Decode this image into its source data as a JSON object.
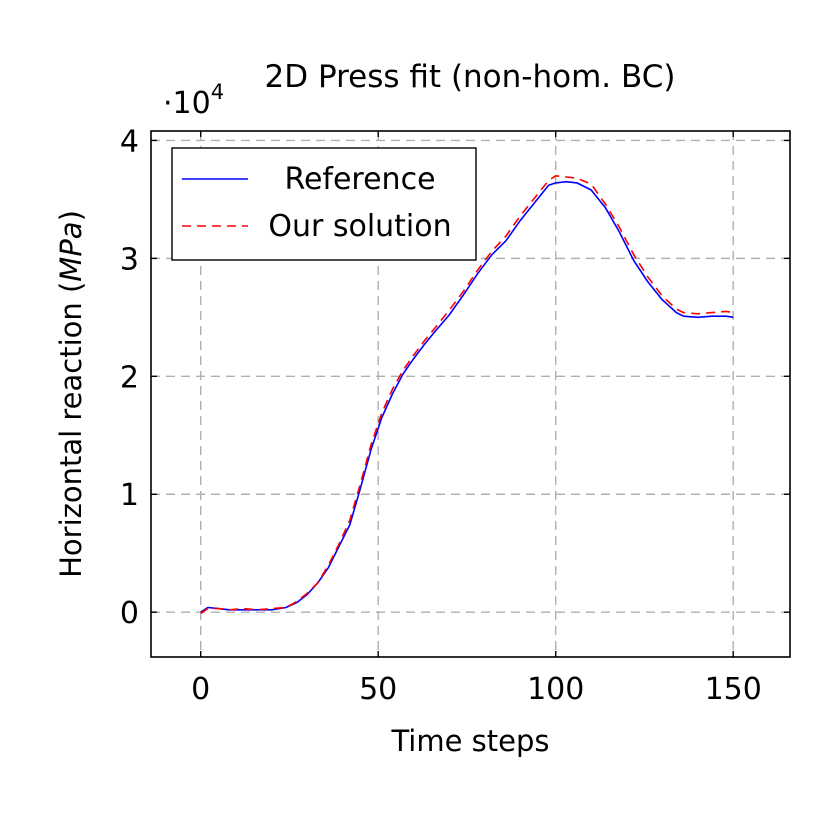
{
  "chart_data": {
    "type": "line",
    "title": "2D Press fit (non-hom. BC)",
    "xlabel": "Time steps",
    "ylabel_prefix": "Horizontal reaction (",
    "ylabel_unit": "MPa",
    "ylabel_suffix": ")",
    "y_multiplier_base": "·10",
    "y_multiplier_exp": "4",
    "xlim": [
      -14,
      166
    ],
    "ylim": [
      -0.38,
      4.08
    ],
    "xticks": [
      0,
      50,
      100,
      150
    ],
    "yticks": [
      0,
      1,
      2,
      3,
      4
    ],
    "grid": true,
    "legend_position": "top-left",
    "series": [
      {
        "name": "Reference",
        "color": "#0000ff",
        "style": "solid",
        "x": [
          0,
          2,
          5,
          8,
          12,
          16,
          20,
          24,
          27,
          30,
          33,
          36,
          39,
          42,
          45,
          48,
          51,
          54,
          57,
          60,
          63,
          66,
          70,
          74,
          78,
          82,
          86,
          90,
          94,
          98,
          100,
          103,
          106,
          110,
          114,
          118,
          122,
          126,
          130,
          134,
          136,
          140,
          144,
          148,
          150
        ],
        "y": [
          0.0,
          0.04,
          0.03,
          0.02,
          0.02,
          0.02,
          0.02,
          0.04,
          0.08,
          0.15,
          0.25,
          0.38,
          0.56,
          0.74,
          1.05,
          1.38,
          1.65,
          1.85,
          2.02,
          2.15,
          2.27,
          2.38,
          2.52,
          2.69,
          2.87,
          3.03,
          3.15,
          3.32,
          3.47,
          3.62,
          3.64,
          3.65,
          3.64,
          3.58,
          3.43,
          3.22,
          2.98,
          2.8,
          2.65,
          2.54,
          2.51,
          2.5,
          2.51,
          2.51,
          2.5
        ]
      },
      {
        "name": "Our solution",
        "color": "#ff0000",
        "style": "dashed",
        "x": [
          0,
          2,
          5,
          8,
          12,
          16,
          20,
          24,
          27,
          30,
          33,
          36,
          39,
          42,
          45,
          48,
          51,
          54,
          57,
          60,
          63,
          66,
          70,
          74,
          78,
          82,
          86,
          90,
          94,
          98,
          100,
          103,
          106,
          110,
          114,
          118,
          122,
          126,
          130,
          134,
          136,
          140,
          144,
          148,
          150
        ],
        "y": [
          -0.01,
          0.03,
          0.03,
          0.02,
          0.03,
          0.02,
          0.03,
          0.04,
          0.09,
          0.16,
          0.25,
          0.4,
          0.58,
          0.78,
          1.09,
          1.42,
          1.69,
          1.89,
          2.05,
          2.18,
          2.3,
          2.41,
          2.56,
          2.72,
          2.9,
          3.06,
          3.19,
          3.36,
          3.51,
          3.66,
          3.7,
          3.69,
          3.68,
          3.63,
          3.46,
          3.26,
          3.03,
          2.84,
          2.68,
          2.57,
          2.54,
          2.53,
          2.54,
          2.55,
          2.54
        ]
      }
    ]
  }
}
